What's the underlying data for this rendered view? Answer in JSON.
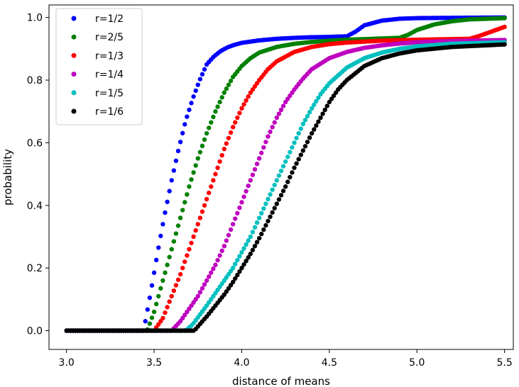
{
  "chart_data": {
    "type": "scatter",
    "title": "",
    "xlabel": "distance of means",
    "ylabel": "probability",
    "xlim": [
      2.9,
      5.55
    ],
    "ylim": [
      -0.06,
      1.04
    ],
    "xticks": [
      3.0,
      3.5,
      4.0,
      4.5,
      5.0,
      5.5
    ],
    "yticks": [
      0.0,
      0.2,
      0.4,
      0.6,
      0.8,
      1.0
    ],
    "xtick_labels": [
      "3.0",
      "3.5",
      "4.0",
      "4.5",
      "5.0",
      "5.5"
    ],
    "ytick_labels": [
      "0.0",
      "0.2",
      "0.4",
      "0.6",
      "0.8",
      "1.0"
    ],
    "grid": false,
    "legend_position": "top-left",
    "x_range": [
      3.0,
      5.5
    ],
    "n_points": 201,
    "series": [
      {
        "name": "r=1/2",
        "color": "#0000ff",
        "x": [
          3.0,
          3.44,
          3.48,
          3.52,
          3.56,
          3.6,
          3.64,
          3.68,
          3.72,
          3.76,
          3.8,
          3.84,
          3.88,
          3.92,
          3.96,
          4.0,
          4.1,
          4.2,
          4.3,
          4.4,
          4.5,
          4.6,
          4.65,
          4.7,
          4.8,
          4.9,
          5.0,
          5.2,
          5.5
        ],
        "y": [
          0.0,
          0.0,
          0.12,
          0.25,
          0.37,
          0.48,
          0.58,
          0.67,
          0.74,
          0.8,
          0.85,
          0.875,
          0.893,
          0.905,
          0.913,
          0.919,
          0.927,
          0.932,
          0.935,
          0.937,
          0.938,
          0.94,
          0.955,
          0.975,
          0.99,
          0.996,
          0.998,
          0.999,
          1.0
        ]
      },
      {
        "name": "r=2/5",
        "color": "#008000",
        "x": [
          3.0,
          3.46,
          3.5,
          3.55,
          3.6,
          3.65,
          3.7,
          3.75,
          3.8,
          3.85,
          3.9,
          3.95,
          4.0,
          4.05,
          4.1,
          4.2,
          4.3,
          4.4,
          4.5,
          4.6,
          4.7,
          4.8,
          4.9,
          4.95,
          5.0,
          5.1,
          5.2,
          5.3,
          5.5
        ],
        "y": [
          0.0,
          0.0,
          0.06,
          0.16,
          0.26,
          0.36,
          0.46,
          0.55,
          0.63,
          0.7,
          0.76,
          0.81,
          0.845,
          0.87,
          0.888,
          0.906,
          0.916,
          0.922,
          0.926,
          0.929,
          0.931,
          0.933,
          0.935,
          0.945,
          0.96,
          0.978,
          0.988,
          0.994,
          0.998
        ]
      },
      {
        "name": "r=1/3",
        "color": "#ff0000",
        "x": [
          3.0,
          3.5,
          3.55,
          3.6,
          3.65,
          3.7,
          3.75,
          3.8,
          3.85,
          3.9,
          3.95,
          4.0,
          4.05,
          4.1,
          4.15,
          4.2,
          4.3,
          4.4,
          4.5,
          4.6,
          4.8,
          5.0,
          5.2,
          5.3,
          5.35,
          5.4,
          5.45,
          5.5
        ],
        "y": [
          0.0,
          0.0,
          0.04,
          0.11,
          0.18,
          0.26,
          0.34,
          0.42,
          0.5,
          0.58,
          0.65,
          0.71,
          0.76,
          0.8,
          0.835,
          0.86,
          0.89,
          0.906,
          0.915,
          0.92,
          0.926,
          0.929,
          0.931,
          0.932,
          0.94,
          0.95,
          0.96,
          0.97
        ]
      },
      {
        "name": "r=1/4",
        "color": "#bf00bf",
        "x": [
          3.0,
          3.6,
          3.65,
          3.7,
          3.75,
          3.8,
          3.85,
          3.9,
          3.95,
          4.0,
          4.05,
          4.1,
          4.15,
          4.2,
          4.25,
          4.3,
          4.35,
          4.4,
          4.5,
          4.6,
          4.7,
          4.8,
          4.9,
          5.0,
          5.2,
          5.5
        ],
        "y": [
          0.0,
          0.0,
          0.03,
          0.07,
          0.11,
          0.16,
          0.21,
          0.27,
          0.34,
          0.41,
          0.48,
          0.55,
          0.62,
          0.68,
          0.73,
          0.77,
          0.805,
          0.835,
          0.87,
          0.89,
          0.903,
          0.911,
          0.917,
          0.921,
          0.925,
          0.928
        ]
      },
      {
        "name": "r=1/5",
        "color": "#00bfbf",
        "x": [
          3.0,
          3.68,
          3.72,
          3.76,
          3.8,
          3.85,
          3.9,
          3.95,
          4.0,
          4.05,
          4.1,
          4.15,
          4.2,
          4.25,
          4.3,
          4.35,
          4.4,
          4.45,
          4.5,
          4.6,
          4.7,
          4.8,
          4.9,
          5.0,
          5.2,
          5.5
        ],
        "y": [
          0.0,
          0.0,
          0.02,
          0.05,
          0.08,
          0.12,
          0.16,
          0.2,
          0.25,
          0.3,
          0.36,
          0.42,
          0.48,
          0.54,
          0.6,
          0.66,
          0.71,
          0.755,
          0.79,
          0.84,
          0.87,
          0.888,
          0.9,
          0.908,
          0.916,
          0.921
        ]
      },
      {
        "name": "r=1/6",
        "color": "#000000",
        "x": [
          3.0,
          3.73,
          3.76,
          3.8,
          3.85,
          3.9,
          3.95,
          4.0,
          4.05,
          4.1,
          4.15,
          4.2,
          4.25,
          4.3,
          4.35,
          4.4,
          4.45,
          4.5,
          4.55,
          4.6,
          4.7,
          4.8,
          4.9,
          5.0,
          5.2,
          5.5
        ],
        "y": [
          0.0,
          0.0,
          0.02,
          0.045,
          0.08,
          0.115,
          0.155,
          0.2,
          0.245,
          0.295,
          0.35,
          0.405,
          0.46,
          0.52,
          0.575,
          0.63,
          0.68,
          0.73,
          0.77,
          0.8,
          0.845,
          0.87,
          0.885,
          0.895,
          0.906,
          0.914
        ]
      }
    ]
  }
}
